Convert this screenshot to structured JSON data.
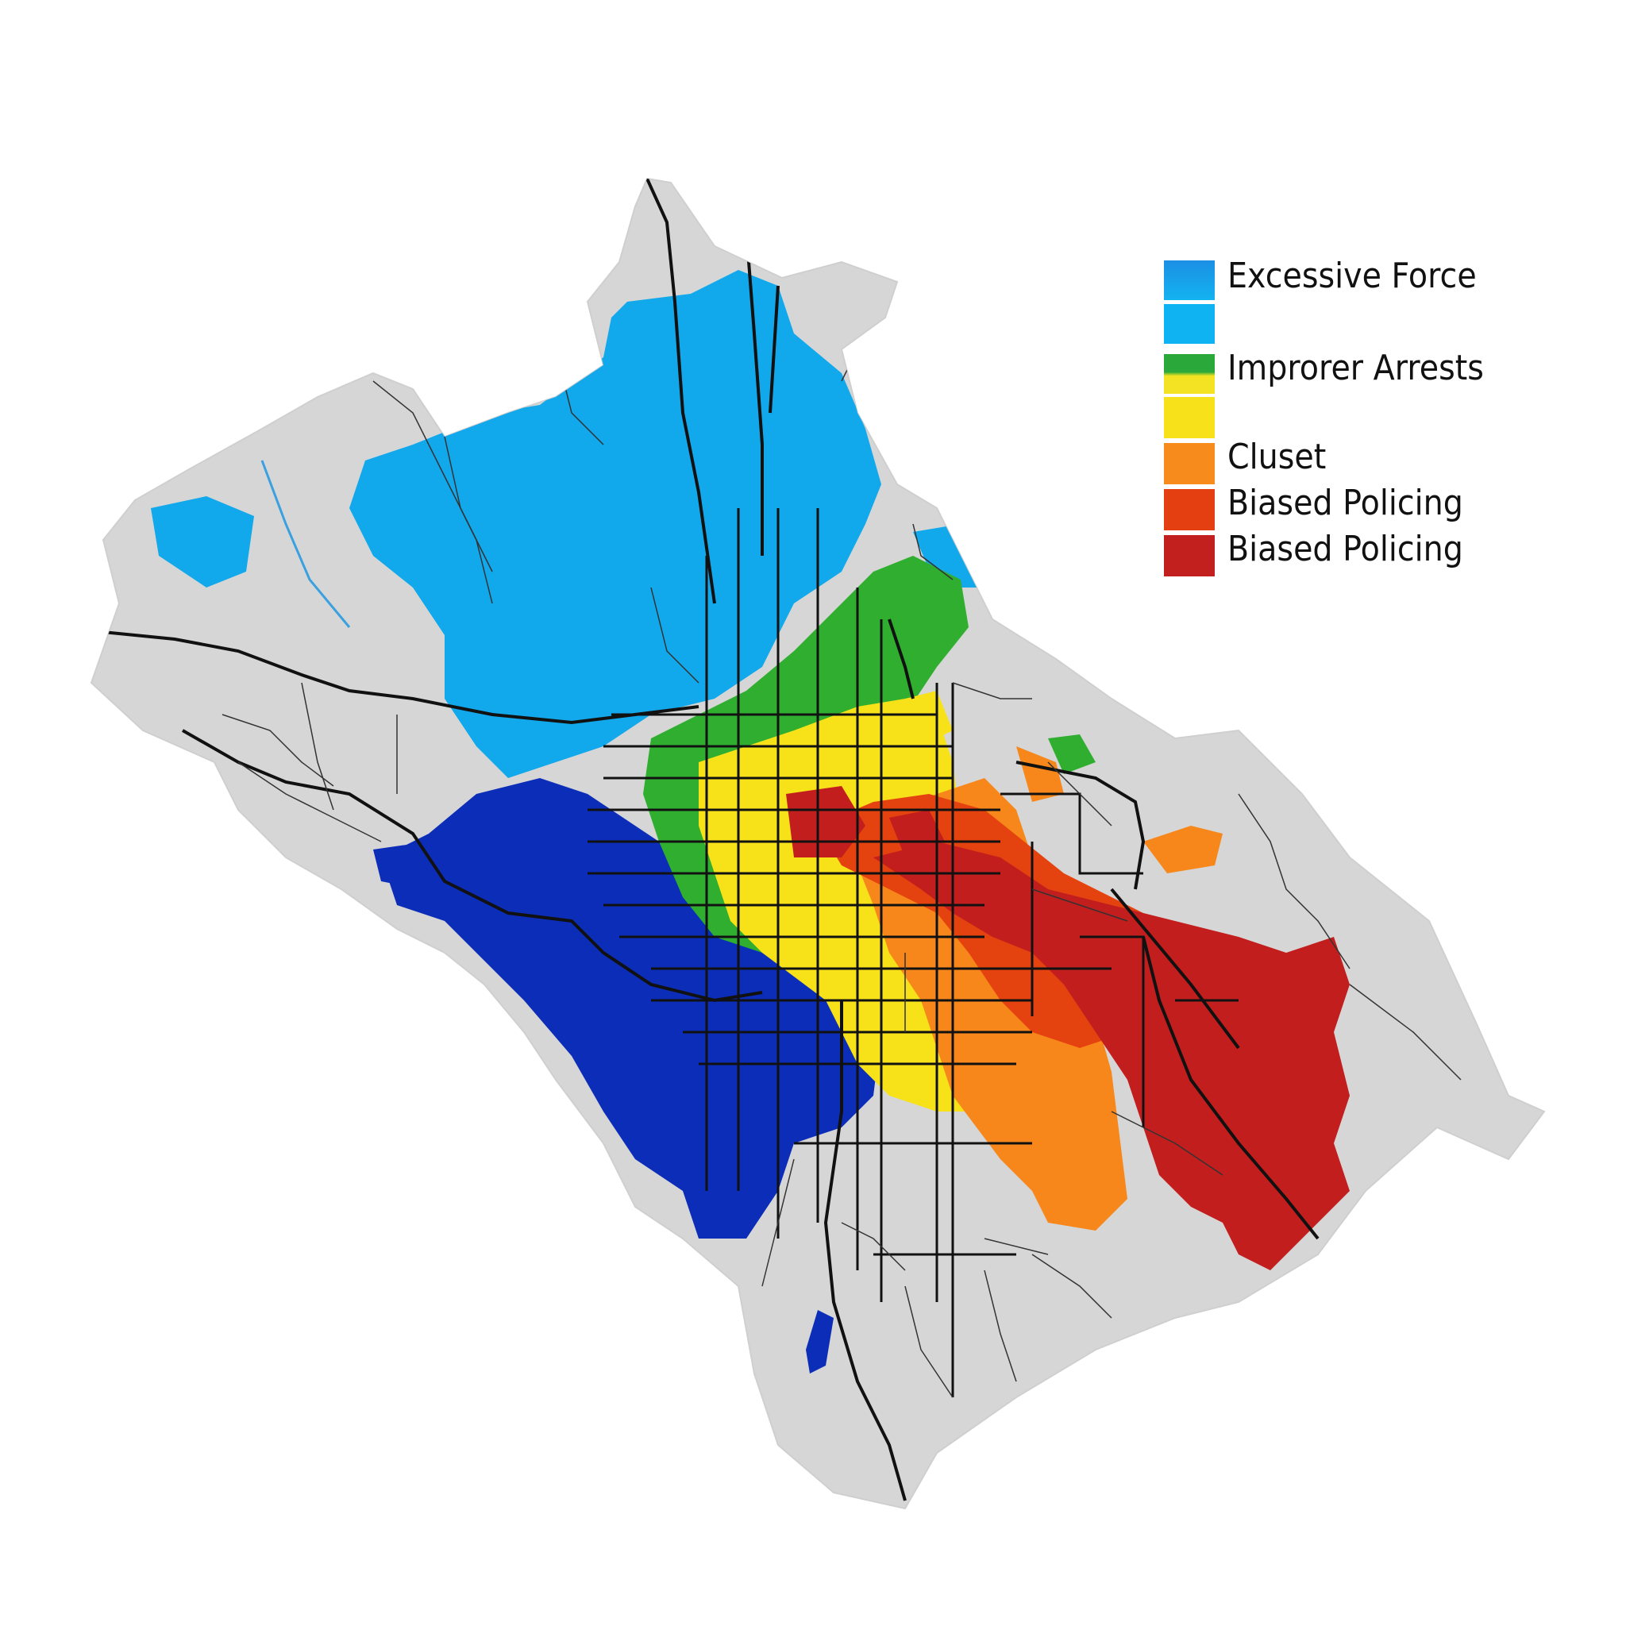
{
  "map": {
    "colors": {
      "land": "#d6d6d6",
      "water": "#3aa0e0",
      "road_major": "#111111",
      "road_minor": "#333333",
      "excessive_force_dark": "#0b2db8",
      "excessive_force_light": "#12a8ec",
      "improper_arrests_green": "#2fae2f",
      "improper_arrests_yellow": "#f7e21a",
      "cluster_orange": "#f7871a",
      "biased_policing_orange_red": "#e4420f",
      "biased_policing_red": "#c21e1e"
    }
  },
  "legend": {
    "items": [
      {
        "label": "Excessive Force",
        "color_top": "#1c8fe3",
        "color_bottom": "#13b3f0"
      },
      {
        "label": "",
        "color_top": "#10b3f2",
        "color_bottom": "#10b3f2"
      },
      {
        "label": "Improrer Arrests",
        "color_top": "#2aa83a",
        "color_bottom": "#f3e322"
      },
      {
        "label": "",
        "color_top": "#f7e11a",
        "color_bottom": "#f7e11a"
      },
      {
        "label": "Cluset",
        "color_top": "#f78b1c",
        "color_bottom": "#f78b1c"
      },
      {
        "label": "Biased Policing",
        "color_top": "#e43f10",
        "color_bottom": "#e43f10"
      },
      {
        "label": "Biased Policing",
        "color_top": "#c21f1f",
        "color_bottom": "#c21f1f"
      }
    ]
  }
}
